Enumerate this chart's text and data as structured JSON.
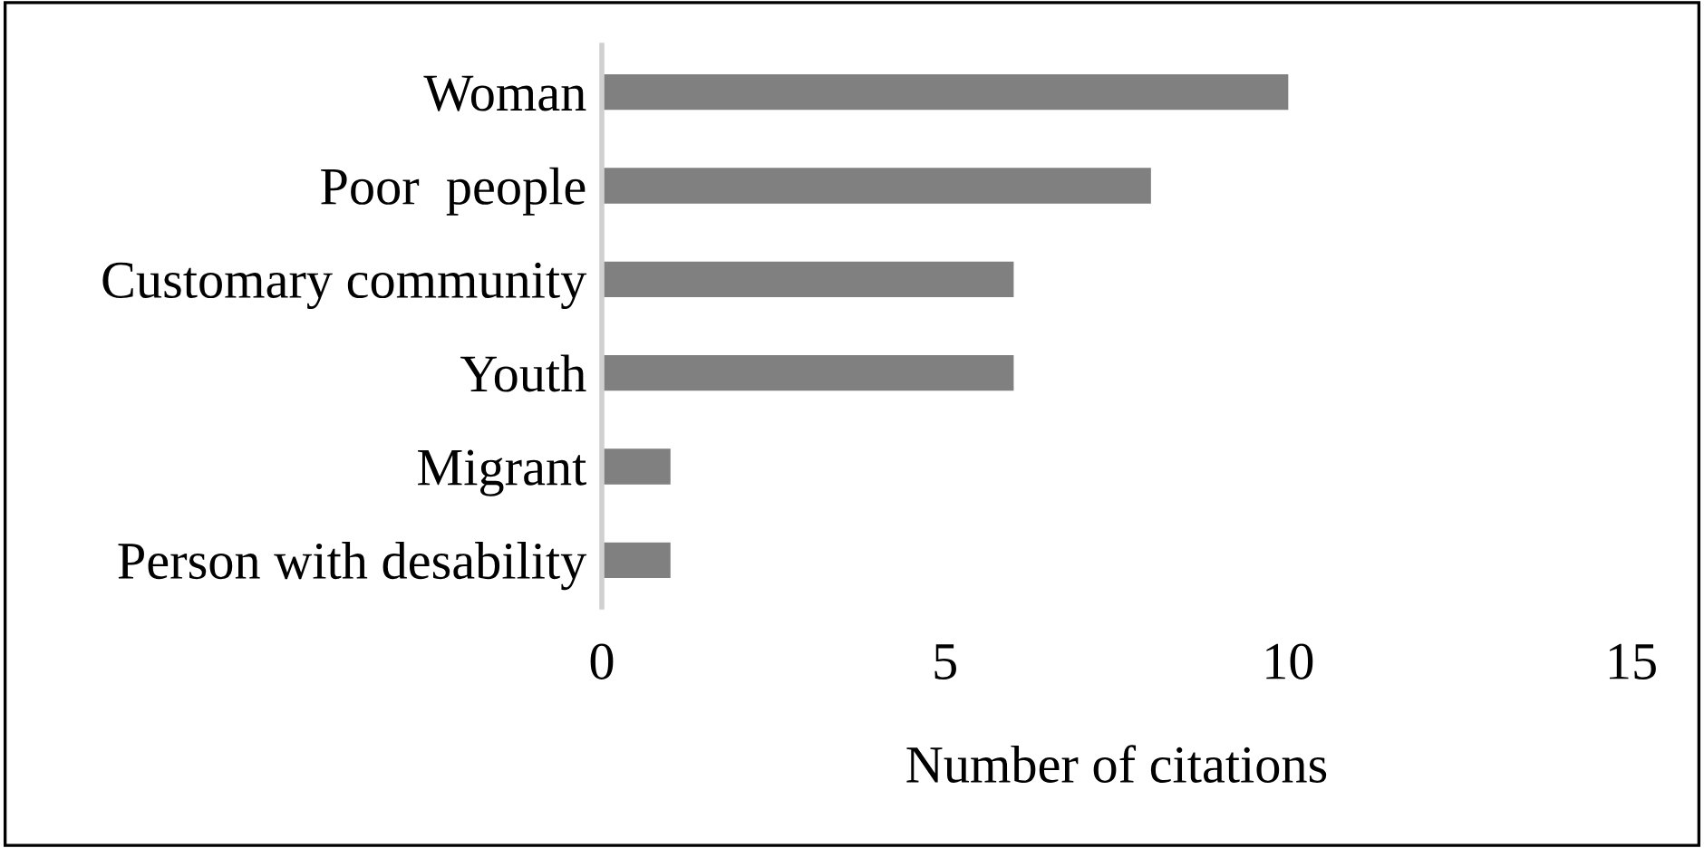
{
  "chart_data": {
    "type": "bar",
    "orientation": "horizontal",
    "categories": [
      "Woman",
      "Poor  people",
      "Customary community",
      "Youth",
      "Migrant",
      "Person with desability"
    ],
    "values": [
      10,
      8,
      6,
      6,
      1,
      1
    ],
    "color": "#808080",
    "xlabel": "Number of citations",
    "xlim": [
      0,
      15
    ],
    "xticks": [
      0,
      5,
      10,
      15
    ],
    "grid": false
  }
}
